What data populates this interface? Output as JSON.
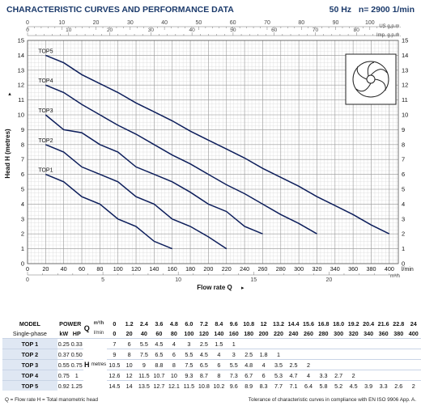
{
  "header": {
    "title": "CHARACTERISTIC CURVES AND PERFORMANCE DATA",
    "frequency": "50 Hz",
    "speed": "n= 2900  1/min"
  },
  "chart_data": {
    "type": "line",
    "ylabel": "Head H (metres)",
    "xlabel": "Flow rate Q",
    "ylim": [
      0,
      15
    ],
    "yticks": [
      0,
      1,
      2,
      3,
      4,
      5,
      6,
      7,
      8,
      9,
      10,
      11,
      12,
      13,
      14,
      15
    ],
    "xlim": [
      0,
      410
    ],
    "xticks_lmin": [
      0,
      20,
      40,
      60,
      80,
      100,
      120,
      140,
      160,
      180,
      200,
      220,
      240,
      260,
      280,
      300,
      320,
      340,
      360,
      380,
      400
    ],
    "x_unit": "l/min",
    "x_axis_m3h": {
      "unit": "m³/h",
      "ticks": [
        0,
        5,
        10,
        15,
        20
      ]
    },
    "x_axis_us": {
      "unit": "US g.p.m.",
      "ticks": [
        0,
        10,
        20,
        30,
        40,
        50,
        60,
        70,
        80,
        90,
        100
      ]
    },
    "x_axis_imp": {
      "unit": "Imp. g.p.m.",
      "ticks": [
        0,
        10,
        20,
        30,
        40,
        50,
        60,
        70,
        80
      ]
    },
    "series": [
      {
        "name": "TOP1",
        "x": [
          20,
          40,
          60,
          80,
          100,
          120,
          140,
          160
        ],
        "y": [
          6,
          5.5,
          4.5,
          4,
          3,
          2.5,
          1.5,
          1
        ]
      },
      {
        "name": "TOP2",
        "x": [
          20,
          40,
          60,
          80,
          100,
          120,
          140,
          160,
          180,
          200,
          220
        ],
        "y": [
          8,
          7.5,
          6.5,
          6,
          5.5,
          4.5,
          4,
          3,
          2.5,
          1.8,
          1
        ]
      },
      {
        "name": "TOP3",
        "x": [
          20,
          40,
          60,
          80,
          100,
          120,
          140,
          160,
          180,
          200,
          220,
          240,
          260
        ],
        "y": [
          10,
          9,
          8.8,
          8,
          7.5,
          6.5,
          6,
          5.5,
          4.8,
          4,
          3.5,
          2.5,
          2
        ]
      },
      {
        "name": "TOP4",
        "x": [
          20,
          40,
          60,
          80,
          100,
          120,
          140,
          160,
          180,
          200,
          220,
          240,
          260,
          280,
          300,
          320
        ],
        "y": [
          12,
          11.5,
          10.7,
          10,
          9.3,
          8.7,
          8,
          7.3,
          6.7,
          6,
          5.3,
          4.7,
          4,
          3.3,
          2.7,
          2
        ]
      },
      {
        "name": "TOP5",
        "x": [
          20,
          40,
          60,
          80,
          100,
          120,
          140,
          160,
          180,
          200,
          220,
          240,
          260,
          280,
          300,
          320,
          340,
          360,
          380,
          400
        ],
        "y": [
          14,
          13.5,
          12.7,
          12.1,
          11.5,
          10.8,
          10.2,
          9.6,
          8.9,
          8.3,
          7.7,
          7.1,
          6.4,
          5.8,
          5.2,
          4.5,
          3.9,
          3.3,
          2.6,
          2
        ]
      }
    ],
    "color": "#0d1e5b"
  },
  "table": {
    "model_header": "MODEL",
    "power_header": "POWER",
    "phase_label": "Single-phase",
    "kw_label": "kW",
    "hp_label": "HP",
    "q_label": "Q",
    "m3h_label": "m³/h",
    "lmin_label": "l/min",
    "h_label": "H",
    "metres_label": "metres",
    "q_m3h": [
      "0",
      "1.2",
      "2.4",
      "3.6",
      "4.8",
      "6.0",
      "7.2",
      "8.4",
      "9.6",
      "10.8",
      "12",
      "13.2",
      "14.4",
      "15.6",
      "16.8",
      "18.0",
      "19.2",
      "20.4",
      "21.6",
      "22.8",
      "24"
    ],
    "q_lmin": [
      "0",
      "20",
      "40",
      "60",
      "80",
      "100",
      "120",
      "140",
      "160",
      "180",
      "200",
      "220",
      "240",
      "260",
      "280",
      "300",
      "320",
      "340",
      "360",
      "380",
      "400"
    ],
    "rows": [
      {
        "model": "TOP 1",
        "kw": "0.25",
        "hp": "0.33",
        "h": [
          "7",
          "6",
          "5.5",
          "4.5",
          "4",
          "3",
          "2.5",
          "1.5",
          "1",
          "",
          "",
          "",
          "",
          "",
          "",
          "",
          "",
          "",
          "",
          "",
          ""
        ]
      },
      {
        "model": "TOP 2",
        "kw": "0.37",
        "hp": "0.50",
        "h": [
          "9",
          "8",
          "7.5",
          "6.5",
          "6",
          "5.5",
          "4.5",
          "4",
          "3",
          "2.5",
          "1.8",
          "1",
          "",
          "",
          "",
          "",
          "",
          "",
          "",
          "",
          ""
        ]
      },
      {
        "model": "TOP 3",
        "kw": "0.55",
        "hp": "0.75",
        "h": [
          "10.5",
          "10",
          "9",
          "8.8",
          "8",
          "7.5",
          "6.5",
          "6",
          "5.5",
          "4.8",
          "4",
          "3.5",
          "2.5",
          "2",
          "",
          "",
          "",
          "",
          "",
          "",
          ""
        ]
      },
      {
        "model": "TOP 4",
        "kw": "0.75",
        "hp": "1",
        "h": [
          "12.6",
          "12",
          "11.5",
          "10.7",
          "10",
          "9.3",
          "8.7",
          "8",
          "7.3",
          "6.7",
          "6",
          "5.3",
          "4.7",
          "4",
          "3.3",
          "2.7",
          "2",
          "",
          "",
          "",
          ""
        ]
      },
      {
        "model": "TOP 5",
        "kw": "0.92",
        "hp": "1.25",
        "h": [
          "14.5",
          "14",
          "13.5",
          "12.7",
          "12.1",
          "11.5",
          "10.8",
          "10.2",
          "9.6",
          "8.9",
          "8.3",
          "7.7",
          "7.1",
          "6.4",
          "5.8",
          "5.2",
          "4.5",
          "3.9",
          "3.3",
          "2.6",
          "2"
        ]
      }
    ]
  },
  "footer": {
    "left": "Q = Flow rate  H = Total manometric head",
    "right": "Tolerance of characteristic curves in compliance with EN ISO 9906 App. A."
  }
}
